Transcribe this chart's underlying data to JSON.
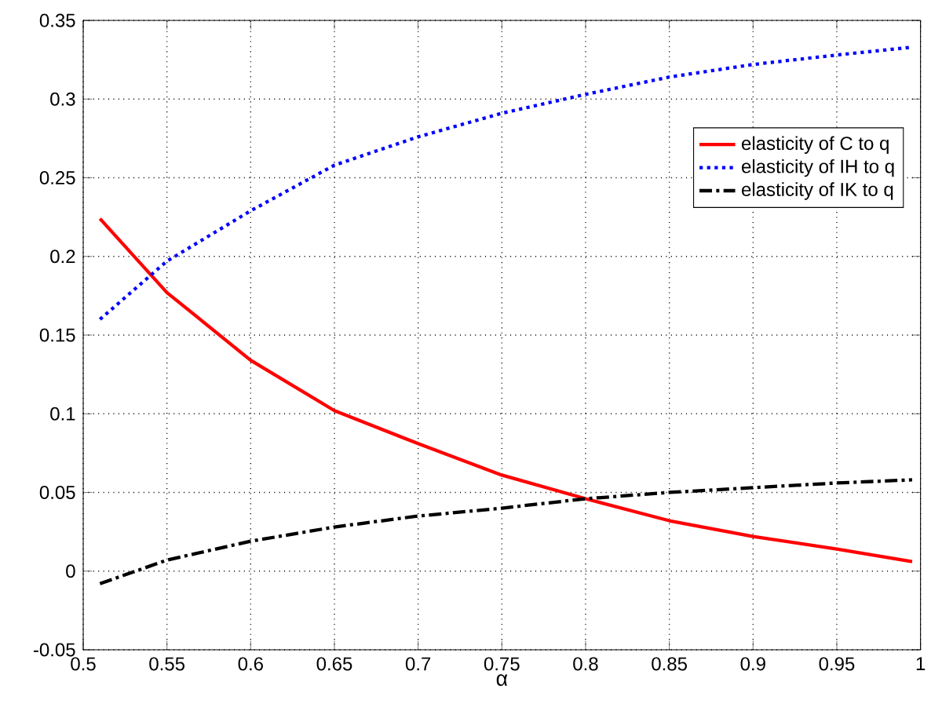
{
  "chart_data": {
    "type": "line",
    "xlabel": "α",
    "x": [
      0.51,
      0.55,
      0.6,
      0.65,
      0.7,
      0.75,
      0.8,
      0.85,
      0.9,
      0.95,
      0.995
    ],
    "series": [
      {
        "name": "elasticity of C to q",
        "color": "#ff0000",
        "line_style": "solid",
        "values": [
          0.224,
          0.177,
          0.134,
          0.102,
          0.081,
          0.061,
          0.046,
          0.032,
          0.022,
          0.014,
          0.006
        ]
      },
      {
        "name": "elasticity of IH to q",
        "color": "#0000ff",
        "line_style": "dotted",
        "values": [
          0.16,
          0.197,
          0.229,
          0.258,
          0.276,
          0.291,
          0.303,
          0.314,
          0.322,
          0.328,
          0.333
        ]
      },
      {
        "name": "elasticity of IK to q",
        "color": "#000000",
        "line_style": "dashdotted",
        "values": [
          -0.008,
          0.007,
          0.019,
          0.028,
          0.035,
          0.04,
          0.046,
          0.05,
          0.053,
          0.056,
          0.058
        ]
      }
    ],
    "xlim": [
      0.5,
      1
    ],
    "ylim": [
      -0.05,
      0.35
    ],
    "xticks": [
      0.5,
      0.55,
      0.6,
      0.65,
      0.7,
      0.75,
      0.8,
      0.85,
      0.9,
      0.95,
      1
    ],
    "yticks": [
      -0.05,
      0,
      0.05,
      0.1,
      0.15,
      0.2,
      0.25,
      0.3,
      0.35
    ],
    "grid": true,
    "legend": "top right",
    "marker": "none"
  }
}
